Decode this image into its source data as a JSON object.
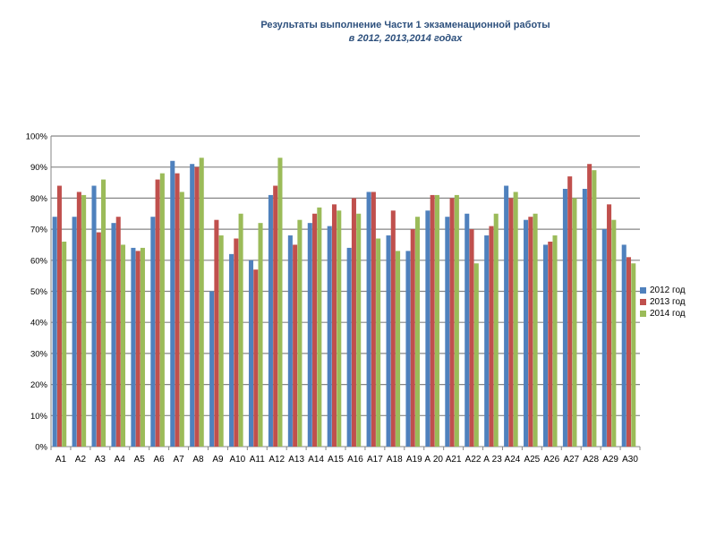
{
  "chart_data": {
    "type": "bar",
    "title": "Результаты выполнение Части 1 экзаменационной работы",
    "subtitle": "в 2012, 2013,2014 годах",
    "xlabel": "",
    "ylabel": "",
    "ylim": [
      0,
      100
    ],
    "yticks": [
      "0%",
      "10%",
      "20%",
      "30%",
      "40%",
      "50%",
      "60%",
      "70%",
      "80%",
      "90%",
      "100%"
    ],
    "grid": true,
    "legend_position": "right",
    "categories": [
      "А1",
      "А2",
      "А3",
      "А4",
      "А5",
      "А6",
      "А7",
      "А8",
      "А9",
      "А10",
      "А11",
      "А12",
      "А13",
      "А14",
      "А15",
      "А16",
      "А17",
      "А18",
      "А19",
      "А 20",
      "А21",
      "А22",
      "А 23",
      "А24",
      "А25",
      "А26",
      "А27",
      "А28",
      "А29",
      "А30"
    ],
    "series": [
      {
        "name": "2012 год",
        "color": "#4f81bd",
        "values": [
          74,
          74,
          84,
          72,
          64,
          74,
          92,
          91,
          50,
          62,
          60,
          81,
          68,
          72,
          71,
          64,
          82,
          68,
          63,
          76,
          74,
          75,
          68,
          84,
          73,
          65,
          83,
          83,
          70,
          65
        ]
      },
      {
        "name": "2013 год",
        "color": "#c0504d",
        "values": [
          84,
          82,
          69,
          74,
          63,
          86,
          88,
          90,
          73,
          67,
          57,
          84,
          65,
          75,
          78,
          80,
          82,
          76,
          70,
          81,
          80,
          70,
          71,
          80,
          74,
          66,
          87,
          91,
          78,
          61
        ]
      },
      {
        "name": "2014 год",
        "color": "#9bbb59",
        "values": [
          66,
          81,
          86,
          65,
          64,
          88,
          82,
          93,
          68,
          75,
          72,
          93,
          73,
          77,
          76,
          75,
          67,
          63,
          74,
          81,
          81,
          59,
          75,
          82,
          75,
          68,
          80,
          89,
          73,
          59
        ]
      }
    ]
  }
}
